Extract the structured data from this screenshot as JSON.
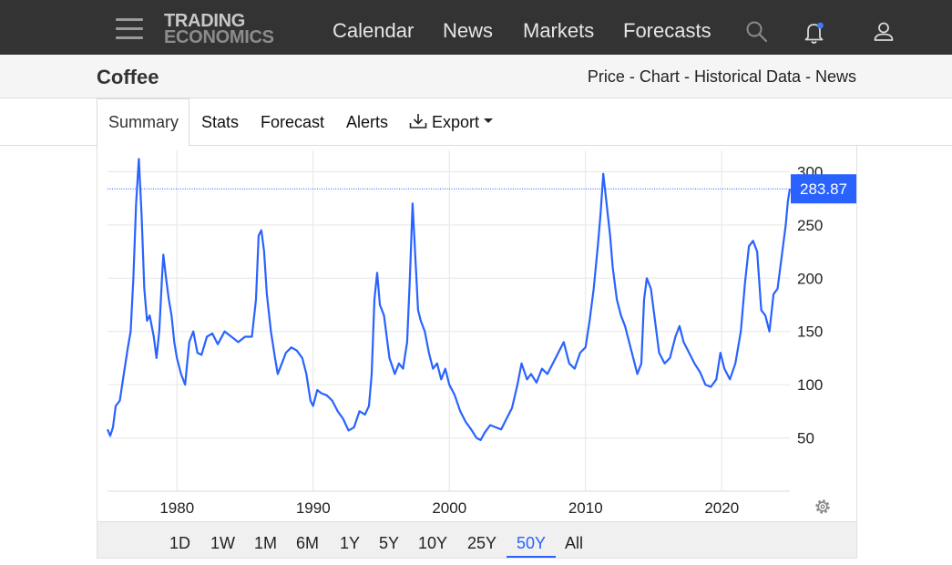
{
  "header": {
    "logo_line1": "TRADING",
    "logo_line2": "ECONOMICS",
    "nav": [
      "Calendar",
      "News",
      "Markets",
      "Forecasts"
    ],
    "icons": [
      "menu-icon",
      "search-icon",
      "bell-icon",
      "user-icon"
    ]
  },
  "page": {
    "title": "Coffee",
    "crumbs": [
      "Price",
      "Chart",
      "Historical Data",
      "News"
    ],
    "crumb_sep": " - "
  },
  "tabs": {
    "items": [
      "Summary",
      "Stats",
      "Forecast",
      "Alerts"
    ],
    "export_label": "Export",
    "active": "Summary"
  },
  "ranges": {
    "items": [
      "1D",
      "1W",
      "1M",
      "6M",
      "1Y",
      "5Y",
      "10Y",
      "25Y",
      "50Y",
      "All"
    ],
    "active": "50Y"
  },
  "colors": {
    "line": "#2962ff",
    "price_tag": "#2962ff",
    "topbar": "#333333"
  },
  "chart_data": {
    "type": "line",
    "series": [
      {
        "points": [
          [
            1974.9,
            58
          ],
          [
            1975.1,
            52
          ],
          [
            1975.3,
            60
          ],
          [
            1975.5,
            80
          ],
          [
            1975.8,
            85
          ],
          [
            1976.1,
            110
          ],
          [
            1976.4,
            135
          ],
          [
            1976.6,
            150
          ],
          [
            1976.8,
            200
          ],
          [
            1977.0,
            270
          ],
          [
            1977.2,
            312
          ],
          [
            1977.4,
            260
          ],
          [
            1977.6,
            190
          ],
          [
            1977.8,
            160
          ],
          [
            1978.0,
            165
          ],
          [
            1978.3,
            145
          ],
          [
            1978.5,
            125
          ],
          [
            1978.7,
            150
          ],
          [
            1978.9,
            200
          ],
          [
            1979.0,
            222
          ],
          [
            1979.2,
            200
          ],
          [
            1979.4,
            180
          ],
          [
            1979.6,
            165
          ],
          [
            1979.8,
            140
          ],
          [
            1980.0,
            125
          ],
          [
            1980.3,
            110
          ],
          [
            1980.6,
            100
          ],
          [
            1980.9,
            140
          ],
          [
            1981.2,
            150
          ],
          [
            1981.5,
            130
          ],
          [
            1981.8,
            128
          ],
          [
            1982.2,
            145
          ],
          [
            1982.6,
            148
          ],
          [
            1983.0,
            138
          ],
          [
            1983.5,
            150
          ],
          [
            1984.0,
            145
          ],
          [
            1984.5,
            140
          ],
          [
            1985.0,
            145
          ],
          [
            1985.5,
            145
          ],
          [
            1985.8,
            180
          ],
          [
            1986.0,
            240
          ],
          [
            1986.2,
            245
          ],
          [
            1986.4,
            225
          ],
          [
            1986.6,
            185
          ],
          [
            1986.9,
            150
          ],
          [
            1987.2,
            125
          ],
          [
            1987.4,
            110
          ],
          [
            1987.7,
            120
          ],
          [
            1988.0,
            130
          ],
          [
            1988.4,
            135
          ],
          [
            1988.8,
            132
          ],
          [
            1989.2,
            125
          ],
          [
            1989.5,
            110
          ],
          [
            1989.8,
            85
          ],
          [
            1990.0,
            80
          ],
          [
            1990.3,
            95
          ],
          [
            1990.6,
            92
          ],
          [
            1991.0,
            90
          ],
          [
            1991.4,
            85
          ],
          [
            1991.8,
            75
          ],
          [
            1992.2,
            68
          ],
          [
            1992.6,
            57
          ],
          [
            1993.0,
            60
          ],
          [
            1993.4,
            75
          ],
          [
            1993.8,
            72
          ],
          [
            1994.1,
            80
          ],
          [
            1994.3,
            110
          ],
          [
            1994.5,
            180
          ],
          [
            1994.7,
            205
          ],
          [
            1994.9,
            175
          ],
          [
            1995.2,
            165
          ],
          [
            1995.6,
            125
          ],
          [
            1996.0,
            110
          ],
          [
            1996.3,
            120
          ],
          [
            1996.6,
            115
          ],
          [
            1996.9,
            140
          ],
          [
            1997.1,
            200
          ],
          [
            1997.3,
            270
          ],
          [
            1997.5,
            220
          ],
          [
            1997.7,
            170
          ],
          [
            1997.9,
            160
          ],
          [
            1998.2,
            150
          ],
          [
            1998.5,
            130
          ],
          [
            1998.8,
            115
          ],
          [
            1999.1,
            120
          ],
          [
            1999.4,
            105
          ],
          [
            1999.7,
            115
          ],
          [
            2000.0,
            100
          ],
          [
            2000.4,
            90
          ],
          [
            2000.8,
            75
          ],
          [
            2001.2,
            65
          ],
          [
            2001.6,
            58
          ],
          [
            2002.0,
            50
          ],
          [
            2002.3,
            48
          ],
          [
            2002.6,
            55
          ],
          [
            2003.0,
            62
          ],
          [
            2003.4,
            60
          ],
          [
            2003.8,
            58
          ],
          [
            2004.2,
            68
          ],
          [
            2004.6,
            78
          ],
          [
            2005.0,
            100
          ],
          [
            2005.3,
            120
          ],
          [
            2005.7,
            105
          ],
          [
            2006.0,
            110
          ],
          [
            2006.4,
            102
          ],
          [
            2006.8,
            115
          ],
          [
            2007.2,
            110
          ],
          [
            2007.6,
            120
          ],
          [
            2008.0,
            130
          ],
          [
            2008.4,
            140
          ],
          [
            2008.8,
            120
          ],
          [
            2009.2,
            115
          ],
          [
            2009.6,
            130
          ],
          [
            2010.0,
            135
          ],
          [
            2010.3,
            160
          ],
          [
            2010.6,
            190
          ],
          [
            2010.9,
            230
          ],
          [
            2011.1,
            260
          ],
          [
            2011.3,
            298
          ],
          [
            2011.5,
            275
          ],
          [
            2011.8,
            240
          ],
          [
            2012.0,
            210
          ],
          [
            2012.3,
            180
          ],
          [
            2012.6,
            165
          ],
          [
            2012.9,
            155
          ],
          [
            2013.2,
            140
          ],
          [
            2013.5,
            125
          ],
          [
            2013.8,
            110
          ],
          [
            2014.1,
            120
          ],
          [
            2014.3,
            180
          ],
          [
            2014.5,
            200
          ],
          [
            2014.8,
            190
          ],
          [
            2015.1,
            160
          ],
          [
            2015.4,
            130
          ],
          [
            2015.8,
            120
          ],
          [
            2016.2,
            125
          ],
          [
            2016.6,
            145
          ],
          [
            2016.9,
            155
          ],
          [
            2017.2,
            140
          ],
          [
            2017.6,
            130
          ],
          [
            2018.0,
            120
          ],
          [
            2018.4,
            112
          ],
          [
            2018.8,
            100
          ],
          [
            2019.2,
            98
          ],
          [
            2019.6,
            105
          ],
          [
            2019.9,
            130
          ],
          [
            2020.2,
            115
          ],
          [
            2020.6,
            105
          ],
          [
            2021.0,
            120
          ],
          [
            2021.4,
            150
          ],
          [
            2021.7,
            195
          ],
          [
            2022.0,
            230
          ],
          [
            2022.3,
            235
          ],
          [
            2022.6,
            225
          ],
          [
            2022.9,
            170
          ],
          [
            2023.2,
            165
          ],
          [
            2023.5,
            150
          ],
          [
            2023.8,
            185
          ],
          [
            2024.1,
            190
          ],
          [
            2024.4,
            220
          ],
          [
            2024.7,
            250
          ],
          [
            2024.85,
            272
          ],
          [
            2025.0,
            283.87
          ]
        ]
      }
    ],
    "x_ticks": [
      "1980",
      "1990",
      "2000",
      "2010",
      "2020"
    ],
    "x_tick_values": [
      1980,
      1990,
      2000,
      2010,
      2020
    ],
    "y_ticks": [
      "50",
      "100",
      "150",
      "200",
      "250",
      "300"
    ],
    "y_tick_values": [
      50,
      100,
      150,
      200,
      250,
      300
    ],
    "xlim": [
      1974.9,
      2025.0
    ],
    "ylim": [
      0,
      320
    ],
    "last_value": 283.87,
    "last_value_label": "283.87",
    "grid": true,
    "y_axis_side": "right"
  }
}
